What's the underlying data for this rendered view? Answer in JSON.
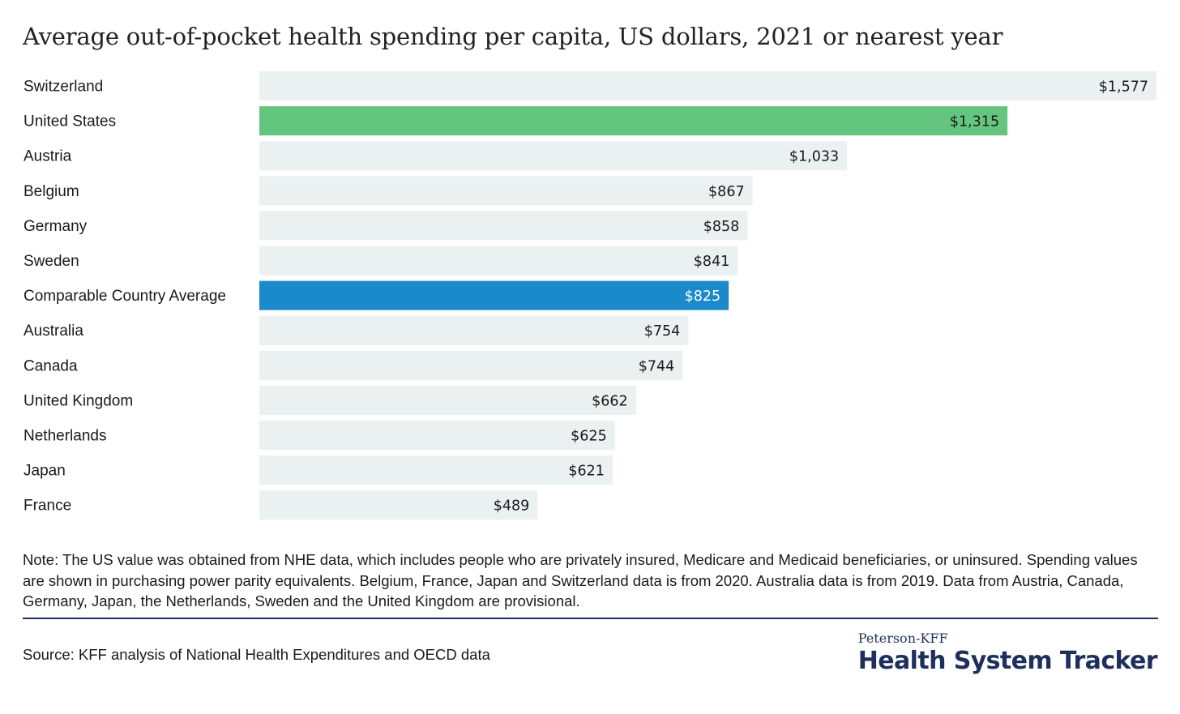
{
  "chart_data": {
    "type": "bar",
    "orientation": "horizontal",
    "title": "Average out-of-pocket health spending per capita, US dollars, 2021 or nearest year",
    "categories": [
      "Switzerland",
      "United States",
      "Austria",
      "Belgium",
      "Germany",
      "Sweden",
      "Comparable Country Average",
      "Australia",
      "Canada",
      "United Kingdom",
      "Netherlands",
      "Japan",
      "France"
    ],
    "values": [
      1577,
      1315,
      1033,
      867,
      858,
      841,
      825,
      754,
      744,
      662,
      625,
      621,
      489
    ],
    "value_labels": [
      "$1,577",
      "$1,315",
      "$1,033",
      "$867",
      "$858",
      "$841",
      "$825",
      "$754",
      "$744",
      "$662",
      "$625",
      "$621",
      "$489"
    ],
    "highlight": {
      "United States": "#64c67e",
      "Comparable Country Average": "#1a8acb"
    },
    "default_bar_color": "#ebf0f1",
    "xlim": [
      0,
      1577
    ],
    "grid": false,
    "legend": "none"
  },
  "note": "Note:  The US value was obtained from NHE data, which includes people who are privately insured, Medicare and Medicaid beneficiaries, or uninsured. Spending values are shown in purchasing power parity equivalents. Belgium, France, Japan and Switzerland data is from 2020. Australia data is from 2019. Data from Austria, Canada, Germany, Japan, the Netherlands, Sweden and the United Kingdom are provisional.",
  "source": "Source: KFF analysis of National Health Expenditures and OECD data",
  "logo": {
    "top": "Peterson-KFF",
    "main": "Health System Tracker"
  },
  "colors": {
    "accent_navy": "#1f2f5c"
  }
}
